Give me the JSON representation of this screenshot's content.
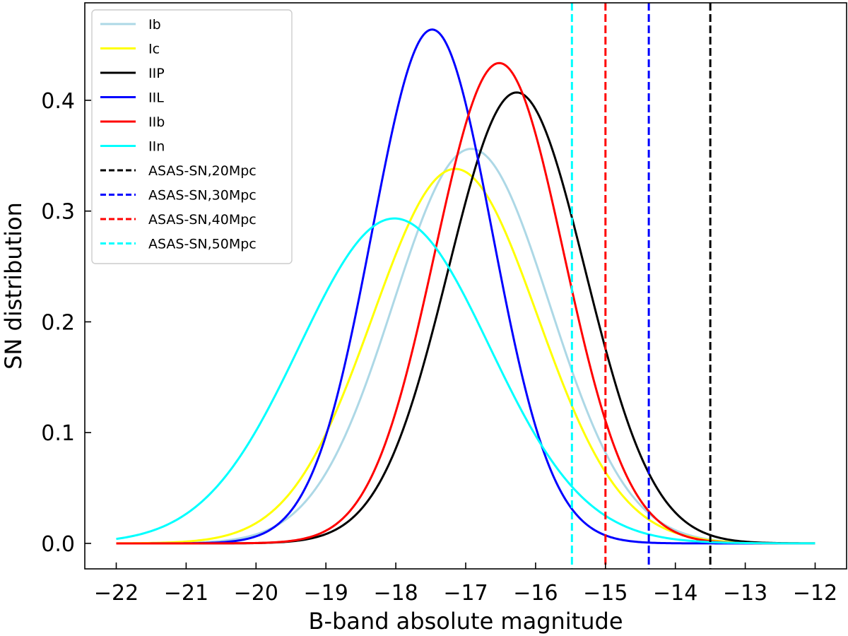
{
  "chart_data": {
    "type": "line",
    "title": "",
    "xlabel": "B-band absolute magnitude",
    "ylabel": "SN distribution",
    "xlim": [
      -22.45,
      -11.55
    ],
    "ylim": [
      -0.023,
      0.488
    ],
    "xticks": [
      -22,
      -21,
      -20,
      -19,
      -18,
      -17,
      -16,
      -15,
      -14,
      -13,
      -12
    ],
    "xtick_labels": [
      "−22",
      "−21",
      "−20",
      "−19",
      "−18",
      "−17",
      "−16",
      "−15",
      "−14",
      "−13",
      "−12"
    ],
    "yticks": [
      0.0,
      0.1,
      0.2,
      0.3,
      0.4
    ],
    "ytick_labels": [
      "0.0",
      "0.1",
      "0.2",
      "0.3",
      "0.4"
    ],
    "x_range": [
      -22,
      -12
    ],
    "grid": false,
    "legend_position": "top-left",
    "series": [
      {
        "name": "Ib",
        "color": "#add8e6",
        "style": "solid",
        "mean": -16.92,
        "sigma": 1.12
      },
      {
        "name": "Ic",
        "color": "#ffff00",
        "style": "solid",
        "mean": -17.15,
        "sigma": 1.18
      },
      {
        "name": "IIP",
        "color": "#000000",
        "style": "solid",
        "mean": -16.27,
        "sigma": 0.98
      },
      {
        "name": "IIL",
        "color": "#0000ff",
        "style": "solid",
        "mean": -17.48,
        "sigma": 0.86
      },
      {
        "name": "IIb",
        "color": "#ff0000",
        "style": "solid",
        "mean": -16.52,
        "sigma": 0.92
      },
      {
        "name": "IIn",
        "color": "#00ffff",
        "style": "solid",
        "mean": -18.02,
        "sigma": 1.36
      }
    ],
    "limits": [
      {
        "name": "ASAS-SN,20Mpc",
        "color": "#000000",
        "style": "dashed",
        "x": -13.5
      },
      {
        "name": "ASAS-SN,30Mpc",
        "color": "#0000ff",
        "style": "dashed",
        "x": -14.38
      },
      {
        "name": "ASAS-SN,40Mpc",
        "color": "#ff0000",
        "style": "dashed",
        "x": -15.0
      },
      {
        "name": "ASAS-SN,50Mpc",
        "color": "#00ffff",
        "style": "dashed",
        "x": -15.48
      }
    ]
  }
}
